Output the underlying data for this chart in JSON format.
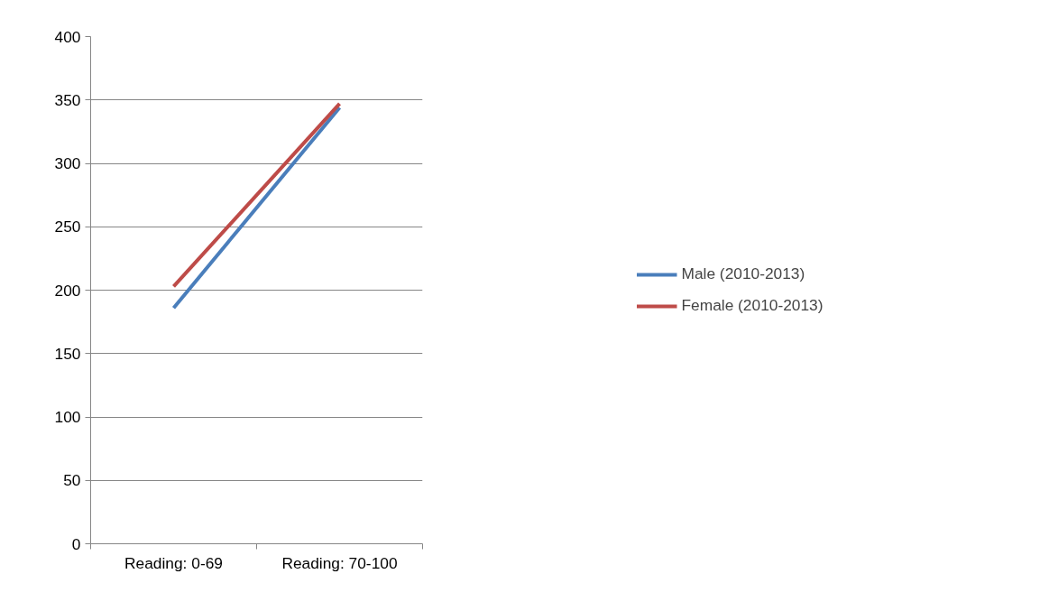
{
  "chart_data": {
    "type": "line",
    "categories": [
      "Reading: 0-69",
      "Reading: 70-100"
    ],
    "series": [
      {
        "name": "Male (2010-2013)",
        "color": "#4a7ebb",
        "values": [
          186,
          344
        ]
      },
      {
        "name": "Female (2010-2013)",
        "color": "#be4b48",
        "values": [
          203,
          347
        ]
      }
    ],
    "ylim": [
      0,
      400
    ],
    "yticks": [
      0,
      50,
      100,
      150,
      200,
      250,
      300,
      350,
      400
    ],
    "grid": "y",
    "legend": "right",
    "marker": "none",
    "line_style": "solid"
  }
}
